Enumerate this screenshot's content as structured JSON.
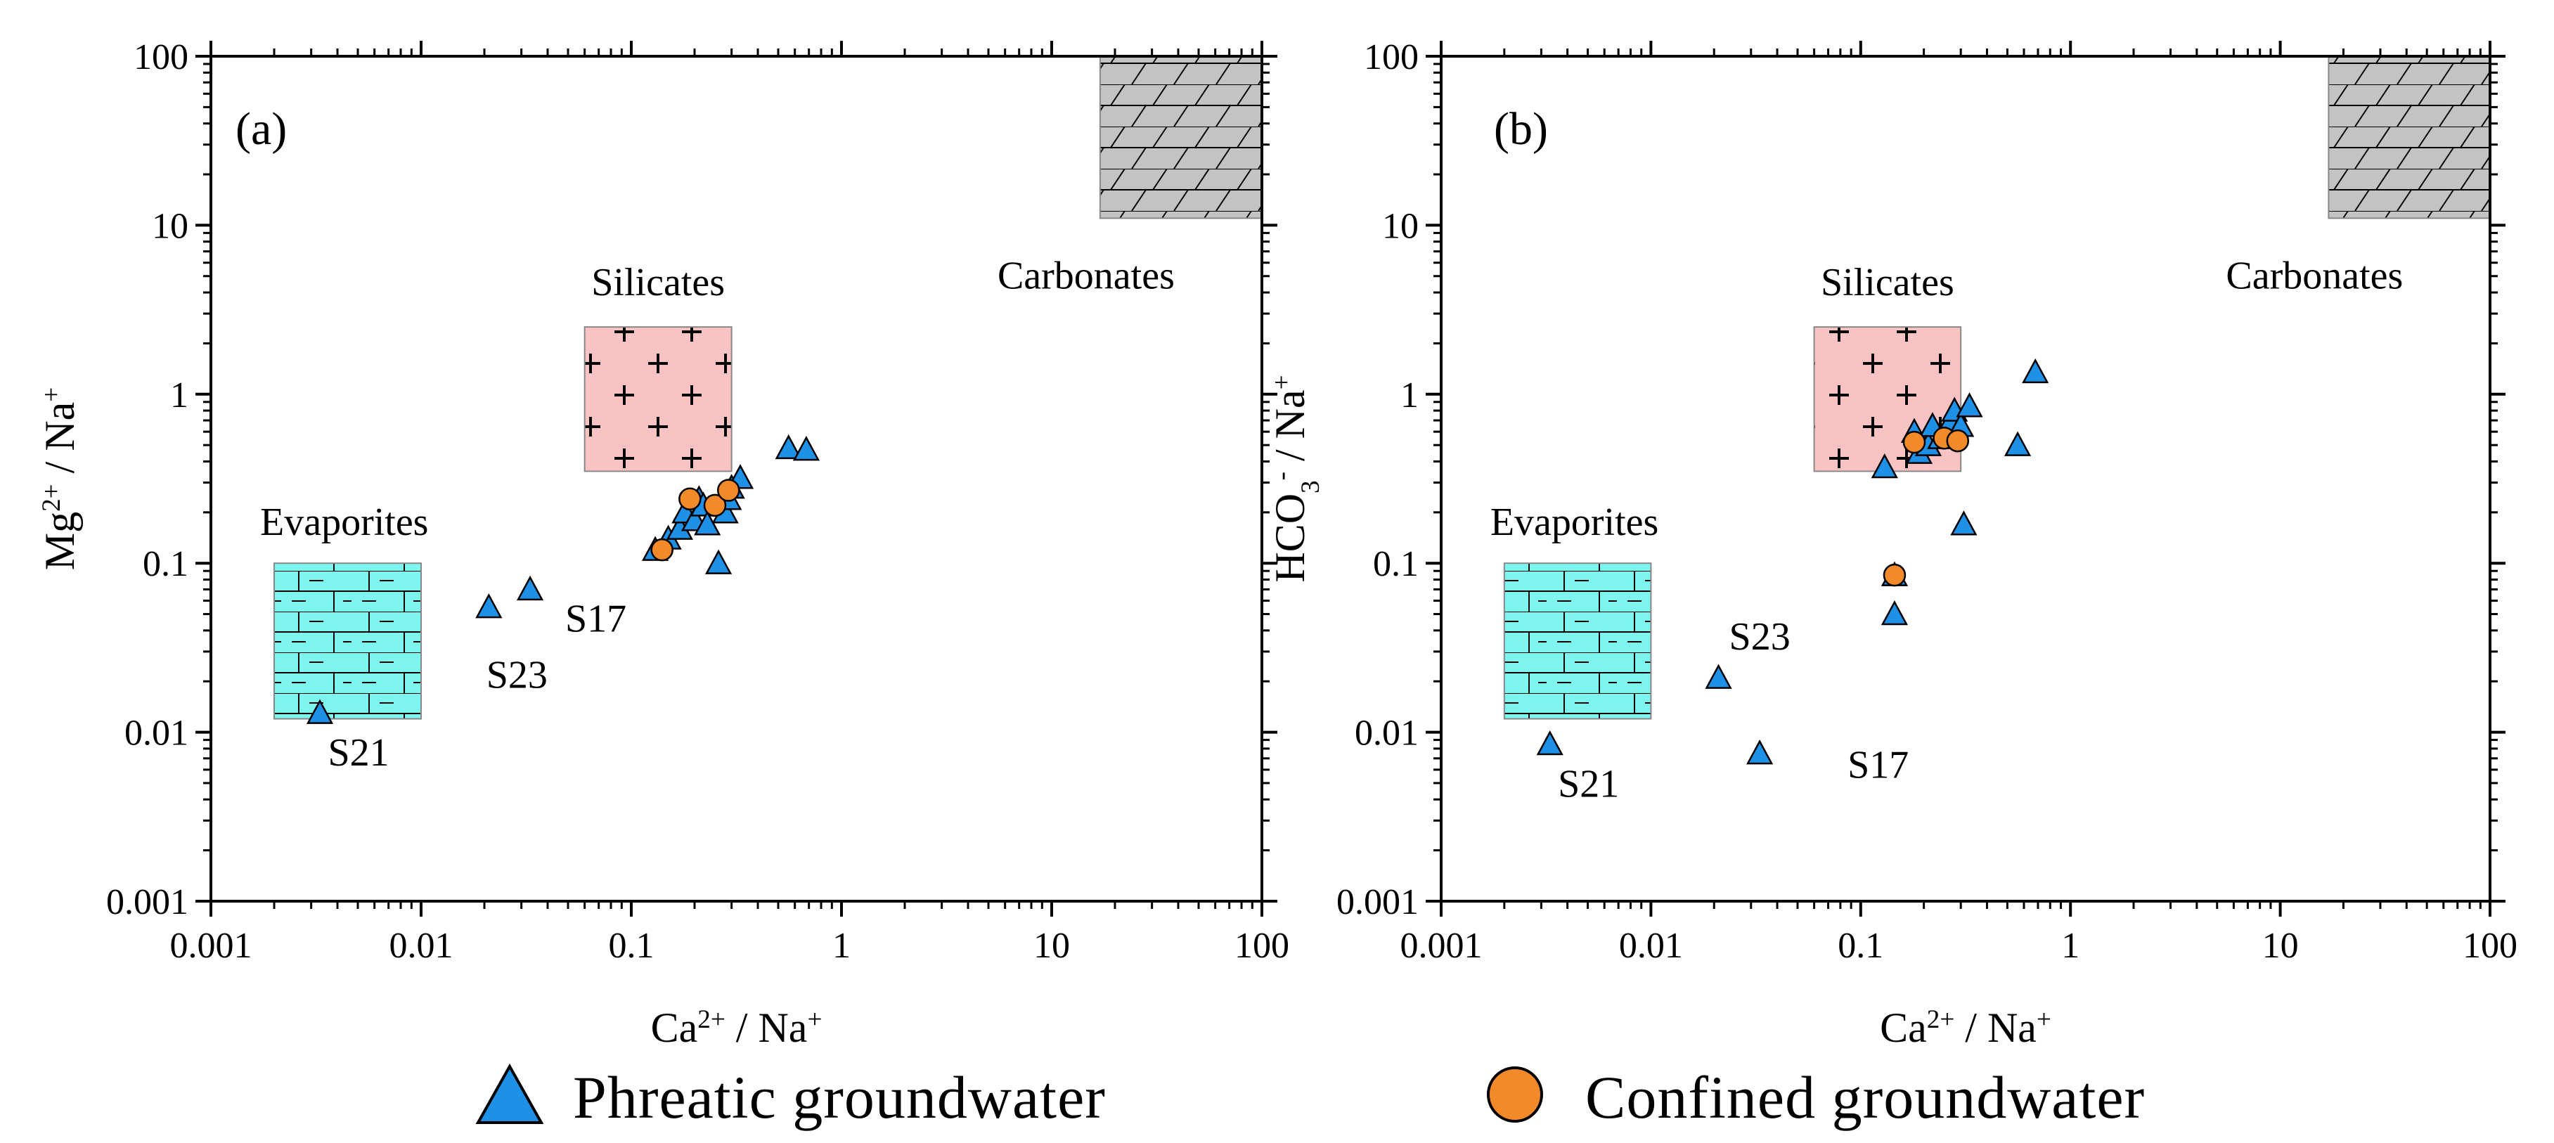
{
  "chart_data": [
    {
      "type": "scatter",
      "panel_label": "(a)",
      "xlabel": {
        "base": "Ca",
        "sup": "2+",
        "mid": " / Na",
        "sup2": "+"
      },
      "ylabel": {
        "base": "Mg",
        "sup": "2+",
        "mid": " / Na",
        "sup2": "+"
      },
      "x_scale": "log",
      "y_scale": "log",
      "xlim": [
        0.001,
        100
      ],
      "ylim": [
        0.001,
        100
      ],
      "x_ticks": [
        "0.001",
        "0.01",
        "0.1",
        "1",
        "10",
        "100"
      ],
      "y_ticks": [
        "0.001",
        "0.01",
        "0.1",
        "1",
        "10",
        "100"
      ],
      "regions": [
        {
          "name": "Evaporites",
          "label": "Evaporites",
          "x": [
            0.002,
            0.01
          ],
          "y": [
            0.012,
            0.1
          ],
          "fill": "#7ff5f0",
          "pattern": "halite"
        },
        {
          "name": "Silicates",
          "label": "Silicates",
          "x": [
            0.06,
            0.3
          ],
          "y": [
            0.35,
            2.5
          ],
          "fill": "#f9c3c3",
          "pattern": "plus"
        },
        {
          "name": "Carbonates",
          "label": "Carbonates",
          "x": [
            17,
            100
          ],
          "y": [
            11,
            100
          ],
          "fill": "#c3c3c3",
          "pattern": "limestone"
        }
      ],
      "series": [
        {
          "name": "Phreatic groundwater",
          "marker": "triangle",
          "color": "#1e90e6",
          "points": [
            [
              0.0033,
              0.013
            ],
            [
              0.021,
              0.055
            ],
            [
              0.033,
              0.07
            ],
            [
              0.13,
              0.12
            ],
            [
              0.15,
              0.14
            ],
            [
              0.17,
              0.16
            ],
            [
              0.18,
              0.2
            ],
            [
              0.2,
              0.18
            ],
            [
              0.21,
              0.24
            ],
            [
              0.22,
              0.22
            ],
            [
              0.23,
              0.17
            ],
            [
              0.26,
              0.1
            ],
            [
              0.28,
              0.2
            ],
            [
              0.29,
              0.24
            ],
            [
              0.3,
              0.28
            ],
            [
              0.33,
              0.32
            ],
            [
              0.56,
              0.48
            ],
            [
              0.68,
              0.47
            ]
          ]
        },
        {
          "name": "Confined groundwater",
          "marker": "circle",
          "color": "#f28a2a",
          "points": [
            [
              0.14,
              0.12
            ],
            [
              0.19,
              0.24
            ],
            [
              0.25,
              0.22
            ],
            [
              0.29,
              0.27
            ]
          ]
        }
      ],
      "annotations": [
        {
          "text": "S23",
          "x": 0.021,
          "y": 0.055
        },
        {
          "text": "S17",
          "x": 0.033,
          "y": 0.07
        },
        {
          "text": "S21",
          "x": 0.0033,
          "y": 0.013
        }
      ]
    },
    {
      "type": "scatter",
      "panel_label": "(b)",
      "xlabel": {
        "base": "Ca",
        "sup": "2+",
        "mid": " / Na",
        "sup2": "+"
      },
      "ylabel": {
        "base": "HCO",
        "sub": "3",
        "sup": "-",
        "mid": " / Na",
        "sup2": "+"
      },
      "x_scale": "log",
      "y_scale": "log",
      "xlim": [
        0.001,
        100
      ],
      "ylim": [
        0.001,
        100
      ],
      "x_ticks": [
        "0.001",
        "0.01",
        "0.1",
        "1",
        "10",
        "100"
      ],
      "y_ticks": [
        "0.001",
        "0.01",
        "0.1",
        "1",
        "10",
        "100"
      ],
      "regions": [
        {
          "name": "Evaporites",
          "label": "Evaporites",
          "x": [
            0.002,
            0.01
          ],
          "y": [
            0.012,
            0.1
          ],
          "fill": "#7ff5f0",
          "pattern": "halite"
        },
        {
          "name": "Silicates",
          "label": "Silicates",
          "x": [
            0.06,
            0.3
          ],
          "y": [
            0.35,
            2.5
          ],
          "fill": "#f9c3c3",
          "pattern": "plus"
        },
        {
          "name": "Carbonates",
          "label": "Carbonates",
          "x": [
            17,
            100
          ],
          "y": [
            11,
            100
          ],
          "fill": "#c3c3c3",
          "pattern": "limestone"
        }
      ],
      "series": [
        {
          "name": "Phreatic groundwater",
          "marker": "triangle",
          "color": "#1e90e6",
          "points": [
            [
              0.0033,
              0.0085
            ],
            [
              0.021,
              0.021
            ],
            [
              0.033,
              0.0075
            ],
            [
              0.13,
              0.37
            ],
            [
              0.145,
              0.085
            ],
            [
              0.145,
              0.05
            ],
            [
              0.18,
              0.6
            ],
            [
              0.19,
              0.45
            ],
            [
              0.21,
              0.5
            ],
            [
              0.22,
              0.65
            ],
            [
              0.24,
              0.55
            ],
            [
              0.27,
              0.7
            ],
            [
              0.28,
              0.8
            ],
            [
              0.3,
              0.65
            ],
            [
              0.31,
              0.17
            ],
            [
              0.33,
              0.85
            ],
            [
              0.56,
              0.5
            ],
            [
              0.68,
              1.35
            ]
          ]
        },
        {
          "name": "Confined groundwater",
          "marker": "circle",
          "color": "#f28a2a",
          "points": [
            [
              0.145,
              0.085
            ],
            [
              0.18,
              0.52
            ],
            [
              0.25,
              0.55
            ],
            [
              0.29,
              0.53
            ]
          ]
        }
      ],
      "annotations": [
        {
          "text": "S23",
          "x": 0.021,
          "y": 0.021
        },
        {
          "text": "S17",
          "x": 0.033,
          "y": 0.0075
        },
        {
          "text": "S21",
          "x": 0.0033,
          "y": 0.0085
        }
      ]
    }
  ],
  "legend": [
    {
      "label": "Phreatic groundwater",
      "marker": "triangle",
      "color": "#1e90e6"
    },
    {
      "label": "Confined groundwater",
      "marker": "circle",
      "color": "#f28a2a"
    }
  ]
}
